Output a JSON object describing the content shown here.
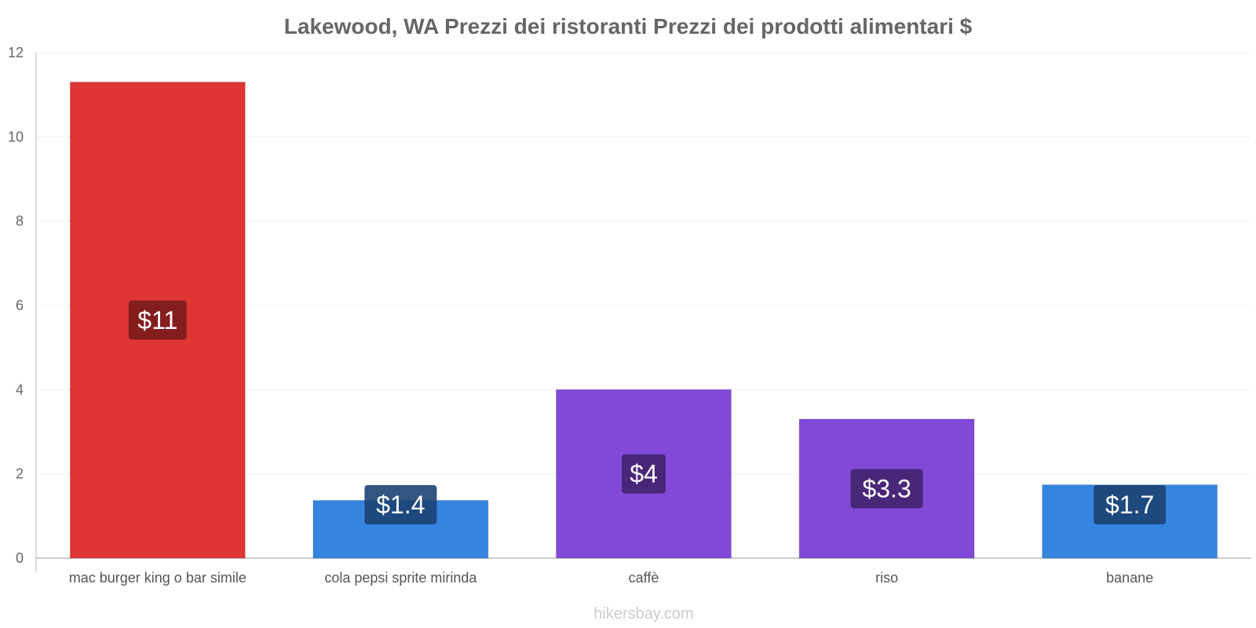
{
  "chart_data": {
    "type": "bar",
    "title": "Lakewood, WA Prezzi dei ristoranti Prezzi dei prodotti alimentari $",
    "categories": [
      "mac burger king o bar simile",
      "cola pepsi sprite mirinda",
      "caffè",
      "riso",
      "banane"
    ],
    "values": [
      11.3,
      1.37,
      4.0,
      3.3,
      1.74
    ],
    "data_labels": [
      "$11",
      "$1.4",
      "$4",
      "$3.3",
      "$1.7"
    ],
    "bar_colors": [
      "#e03535",
      "#3584e0",
      "#8249d8",
      "#8249d8",
      "#3584e0"
    ],
    "label_bg_colors": [
      "#7a1c1c",
      "#1c4273",
      "#42246e",
      "#42246e",
      "#1c4273"
    ],
    "yticks": [
      0,
      2,
      4,
      6,
      8,
      10,
      12
    ],
    "ylim": [
      0,
      12
    ],
    "xlabel": "",
    "ylabel": "",
    "grid": true,
    "legend": "none"
  },
  "watermark": "hikersbay.com"
}
